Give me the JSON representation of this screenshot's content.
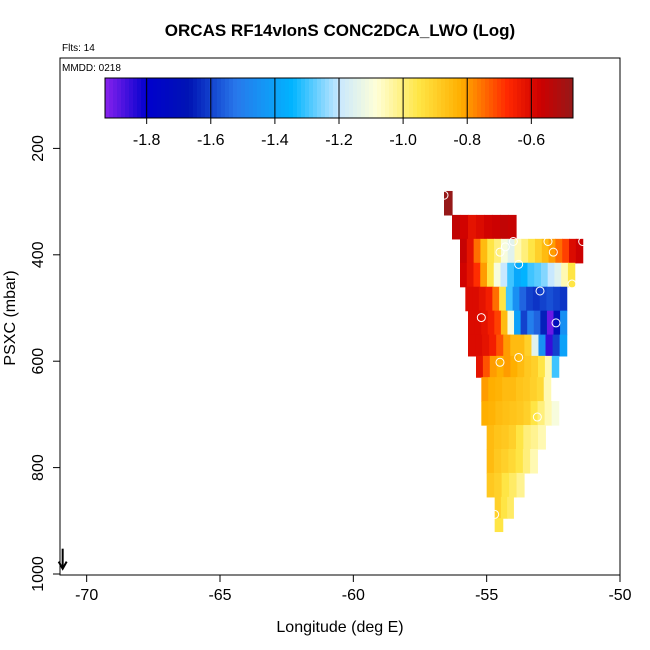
{
  "chart_data": {
    "type": "heatmap",
    "title": "ORCAS RF14vIonS CONC2DCA_LWO (Log)",
    "flights_note": "Flts: 14",
    "date_note": "MMDD: 0218",
    "xlabel": "Longitude (deg E)",
    "ylabel": "PSXC (mbar)",
    "xlim": [
      -71,
      -50
    ],
    "ylim": [
      1000,
      0
    ],
    "x_ticks": [
      -70,
      -65,
      -60,
      -55,
      -50
    ],
    "x_tick_labels": [
      "-70",
      "-65",
      "-60",
      "-55",
      "-50"
    ],
    "y_ticks": [
      200,
      400,
      600,
      800,
      1000
    ],
    "y_tick_labels": [
      "200",
      "400",
      "600",
      "800",
      "1000"
    ],
    "colorbar": {
      "range": [
        -1.93,
        -0.47
      ],
      "ticks": [
        -1.8,
        -1.6,
        -1.4,
        -1.2,
        -1.0,
        -0.8,
        -0.6
      ],
      "tick_labels": [
        "-1.8",
        "-1.6",
        "-1.4",
        "-1.2",
        "-1.0",
        "-0.8",
        "-0.6"
      ]
    },
    "wind_arrow": {
      "x": -70.9,
      "y": 990,
      "direction": "south"
    },
    "rows": [
      {
        "p0": 280,
        "p1": 325,
        "x0": -56.6,
        "x1": -56.3,
        "vals": [
          -0.47
        ]
      },
      {
        "p0": 325,
        "p1": 370,
        "x0": -56.3,
        "x1": -53.9,
        "vals": [
          -0.55,
          -0.58,
          -0.62,
          -0.6,
          -0.58,
          -0.57,
          -0.55,
          -0.56
        ]
      },
      {
        "p0": 370,
        "p1": 415,
        "x0": -56.0,
        "x1": -51.4,
        "vals": [
          -0.56,
          -0.62,
          -0.75,
          -0.85,
          -0.95,
          -1.0,
          -1.1,
          -1.15,
          -1.05,
          -1.0,
          -0.95,
          -0.9,
          -0.85,
          -0.8,
          -0.75,
          -0.7,
          -0.6,
          -0.57
        ]
      },
      {
        "p0": 415,
        "p1": 460,
        "x0": -56.0,
        "x1": -51.7,
        "vals": [
          -0.58,
          -0.62,
          -0.68,
          -0.8,
          -0.95,
          -1.1,
          -1.2,
          -1.3,
          -1.38,
          -1.35,
          -1.3,
          -1.28,
          -1.25,
          -1.2,
          -1.15,
          -1.05,
          -0.95
        ]
      },
      {
        "p0": 460,
        "p1": 505,
        "x0": -55.8,
        "x1": -52.0,
        "vals": [
          -0.6,
          -0.6,
          -0.62,
          -0.65,
          -0.75,
          -0.95,
          -1.3,
          -1.45,
          -1.55,
          -1.6,
          -1.62,
          -1.6,
          -1.58,
          -1.6,
          -1.62
        ]
      },
      {
        "p0": 505,
        "p1": 550,
        "x0": -55.7,
        "x1": -52.0,
        "vals": [
          -0.6,
          -0.6,
          -0.62,
          -0.65,
          -0.7,
          -0.85,
          -1.1,
          -1.4,
          -1.6,
          -1.5,
          -1.55,
          -1.65,
          -1.9,
          -1.7,
          -1.45
        ]
      },
      {
        "p0": 550,
        "p1": 590,
        "x0": -55.7,
        "x1": -52.0,
        "vals": [
          -0.6,
          -0.6,
          -0.62,
          -0.65,
          -0.72,
          -0.8,
          -0.85,
          -0.85,
          -0.9,
          -1.15,
          -1.45,
          -1.85,
          -1.6,
          -1.4
        ]
      },
      {
        "p0": 590,
        "p1": 630,
        "x0": -55.4,
        "x1": -52.3,
        "vals": [
          -0.62,
          -0.72,
          -0.8,
          -0.82,
          -0.8,
          -0.82,
          -0.85,
          -0.88,
          -0.9,
          -0.95,
          -1.05,
          -1.3
        ]
      },
      {
        "p0": 630,
        "p1": 675,
        "x0": -55.2,
        "x1": -52.6,
        "vals": [
          -0.8,
          -0.82,
          -0.83,
          -0.85,
          -0.85,
          -0.87,
          -0.88,
          -0.9,
          -0.92,
          -1.05
        ]
      },
      {
        "p0": 675,
        "p1": 720,
        "x0": -55.2,
        "x1": -52.3,
        "vals": [
          -0.82,
          -0.83,
          -0.85,
          -0.86,
          -0.87,
          -0.88,
          -0.9,
          -0.95,
          -1.0,
          -1.05,
          -1.1
        ]
      },
      {
        "p0": 720,
        "p1": 765,
        "x0": -55.0,
        "x1": -52.8,
        "vals": [
          -0.85,
          -0.87,
          -0.88,
          -0.9,
          -0.95,
          -1.0,
          -1.02,
          -1.05
        ]
      },
      {
        "p0": 765,
        "p1": 810,
        "x0": -55.0,
        "x1": -53.1,
        "vals": [
          -0.85,
          -0.88,
          -0.9,
          -0.92,
          -0.95,
          -1.0,
          -1.05
        ]
      },
      {
        "p0": 810,
        "p1": 855,
        "x0": -55.0,
        "x1": -53.6,
        "vals": [
          -0.88,
          -0.9,
          -0.95,
          -0.98,
          -1.02
        ]
      },
      {
        "p0": 855,
        "p1": 895,
        "x0": -54.7,
        "x1": -54.0,
        "vals": [
          -0.9,
          -0.95,
          -0.98
        ]
      },
      {
        "p0": 895,
        "p1": 920,
        "x0": -54.7,
        "x1": -54.4,
        "vals": [
          -0.95
        ]
      }
    ],
    "points": [
      {
        "x": -56.6,
        "y": 288
      },
      {
        "x": -54.3,
        "y": 385
      },
      {
        "x": -54.0,
        "y": 375
      },
      {
        "x": -54.5,
        "y": 395
      },
      {
        "x": -53.8,
        "y": 418
      },
      {
        "x": -52.7,
        "y": 375
      },
      {
        "x": -52.5,
        "y": 395
      },
      {
        "x": -51.4,
        "y": 375
      },
      {
        "x": -53.0,
        "y": 468
      },
      {
        "x": -51.8,
        "y": 455
      },
      {
        "x": -55.2,
        "y": 518
      },
      {
        "x": -52.4,
        "y": 528
      },
      {
        "x": -53.8,
        "y": 593
      },
      {
        "x": -54.5,
        "y": 602
      },
      {
        "x": -53.1,
        "y": 705
      },
      {
        "x": -54.7,
        "y": 888
      }
    ]
  }
}
